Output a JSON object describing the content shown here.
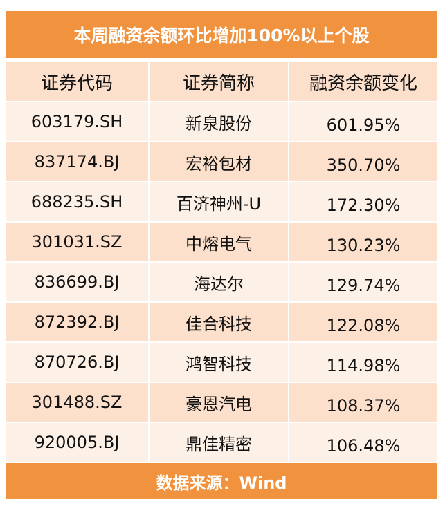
{
  "title": "本周融资余额环比增加100%以上个股",
  "headers": {
    "code": "证券代码",
    "name": "证券简称",
    "change": "融资余额变化"
  },
  "rows": [
    {
      "code": "603179.SH",
      "name": "新泉股份",
      "change": "601.95%"
    },
    {
      "code": "837174.BJ",
      "name": "宏裕包材",
      "change": "350.70%"
    },
    {
      "code": "688235.SH",
      "name": "百济神州-U",
      "change": "172.30%"
    },
    {
      "code": "301031.SZ",
      "name": "中熔电气",
      "change": "130.23%"
    },
    {
      "code": "836699.BJ",
      "name": "海达尔",
      "change": "129.74%"
    },
    {
      "code": "872392.BJ",
      "name": "佳合科技",
      "change": "122.08%"
    },
    {
      "code": "870726.BJ",
      "name": "鸿智科技",
      "change": "114.98%"
    },
    {
      "code": "301488.SZ",
      "name": "豪恩汽电",
      "change": "108.37%"
    },
    {
      "code": "920005.BJ",
      "name": "鼎佳精密",
      "change": "106.48%"
    }
  ],
  "footer": "数据来源：Wind",
  "colors": {
    "accent": "#f1923f",
    "header_fill": "#fce0cc",
    "row_light": "#fdf0e6",
    "row_dark": "#fce0cc"
  }
}
